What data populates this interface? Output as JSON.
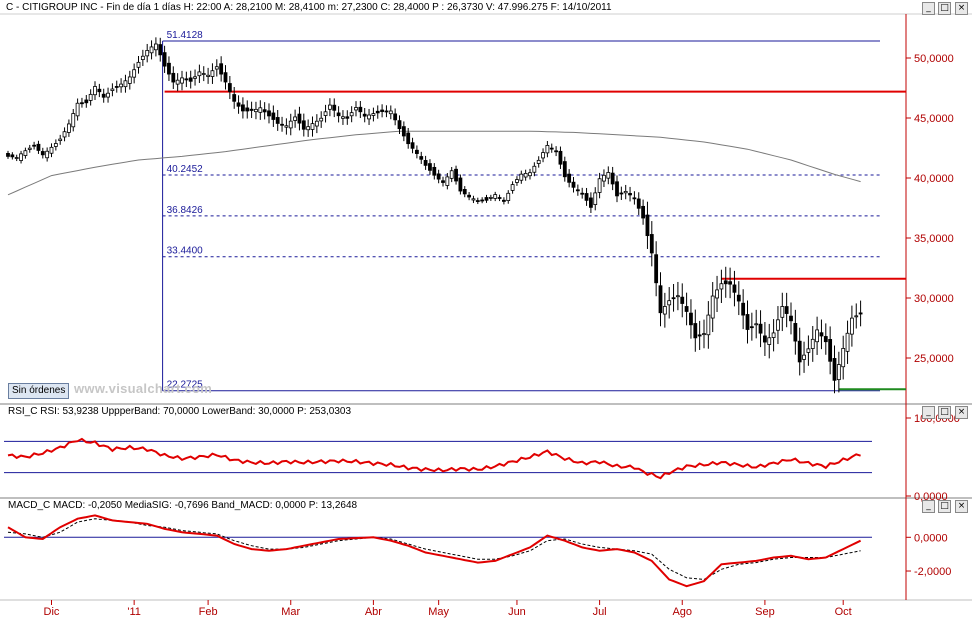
{
  "header": {
    "main": "C - CITIGROUP INC - Fin de día 1 días H: 22:00  A: 28,2100  M: 28,4100  m: 27,2300  C: 28,4000  P : 26,3730  V: 47.996.275  F: 14/10/2011",
    "rsi": "RSI_C  RSI: 53,9238  UppperBand: 70,0000  LowerBand: 30,0000  P: 253,0303",
    "macd": "MACD_C  MACD: -0,2050  MediaSIG: -0,7696  Band_MACD: 0,0000  P: 13,2648"
  },
  "controls": {
    "orders_button": "Sin órdenes",
    "watermark": "www.visualchart.com",
    "minimize": "_",
    "maximize": "□",
    "close": "×"
  },
  "colors": {
    "candle": "#000000",
    "resistance": "#e00000",
    "support": "#1f8a1f",
    "fibonacci": "#1a1a99",
    "moving_average": "#7a7a7a",
    "indicator": "#e00000",
    "axis_text": "#b00000"
  },
  "x_axis": {
    "months": [
      "Dic",
      "'11",
      "Feb",
      "Mar",
      "Abr",
      "May",
      "Jun",
      "Jul",
      "Ago",
      "Sep",
      "Oct"
    ]
  },
  "price_axis": {
    "ticks": [
      "50,0000",
      "45,0000",
      "40,0000",
      "35,0000",
      "30,0000",
      "25,0000"
    ]
  },
  "rsi_axis": {
    "ticks": [
      "100,0000",
      "0,0000"
    ]
  },
  "macd_axis": {
    "ticks": [
      "0,0000",
      "-2,0000"
    ]
  },
  "chart_data": {
    "type": "candlestick",
    "title": "C - CITIGROUP INC",
    "price_range": [
      21.5,
      53.5
    ],
    "fibonacci_levels": [
      {
        "label": "51.4128",
        "value": 51.4128
      },
      {
        "label": "40.2452",
        "value": 40.2452
      },
      {
        "label": "36.8426",
        "value": 36.8426
      },
      {
        "label": "33.4400",
        "value": 33.44
      },
      {
        "label": "22.2725",
        "value": 22.2725
      }
    ],
    "resistance_levels": [
      47.2,
      31.6
    ],
    "support_level": 22.4,
    "last_close": 28.4,
    "price_path": [
      [
        0,
        41.8
      ],
      [
        2,
        41.5
      ],
      [
        4,
        42.0
      ],
      [
        6,
        42.5
      ],
      [
        8,
        42.0
      ],
      [
        10,
        42.8
      ],
      [
        12,
        43.5
      ],
      [
        14,
        44.6
      ],
      [
        16,
        46.1
      ],
      [
        18,
        46.0
      ],
      [
        20,
        47.4
      ],
      [
        22,
        46.7
      ],
      [
        24,
        47.6
      ],
      [
        26,
        48.1
      ],
      [
        28,
        48.6
      ],
      [
        30,
        49.6
      ],
      [
        32,
        50.4
      ],
      [
        34,
        50.9
      ],
      [
        36,
        49.2
      ],
      [
        38,
        48.1
      ],
      [
        40,
        48.6
      ],
      [
        42,
        48.3
      ],
      [
        44,
        48.9
      ],
      [
        46,
        48.4
      ],
      [
        48,
        49.0
      ],
      [
        50,
        47.8
      ],
      [
        52,
        46.4
      ],
      [
        54,
        45.8
      ],
      [
        56,
        45.9
      ],
      [
        58,
        46.0
      ],
      [
        60,
        45.1
      ],
      [
        62,
        44.3
      ],
      [
        64,
        44.1
      ],
      [
        66,
        45.0
      ],
      [
        68,
        44.2
      ],
      [
        70,
        44.8
      ],
      [
        72,
        45.2
      ],
      [
        74,
        46.1
      ],
      [
        76,
        45.0
      ],
      [
        78,
        44.7
      ],
      [
        80,
        45.7
      ],
      [
        82,
        45.2
      ],
      [
        84,
        45.6
      ],
      [
        86,
        45.8
      ],
      [
        88,
        45.7
      ],
      [
        90,
        44.0
      ],
      [
        92,
        42.6
      ],
      [
        94,
        41.8
      ],
      [
        96,
        41.0
      ],
      [
        98,
        40.4
      ],
      [
        100,
        39.9
      ],
      [
        102,
        40.8
      ],
      [
        104,
        38.9
      ],
      [
        106,
        38.2
      ],
      [
        108,
        37.8
      ],
      [
        110,
        38.0
      ],
      [
        112,
        38.7
      ],
      [
        114,
        38.3
      ],
      [
        116,
        39.7
      ],
      [
        118,
        40.4
      ],
      [
        120,
        40.3
      ],
      [
        122,
        41.2
      ],
      [
        124,
        42.5
      ],
      [
        126,
        42.2
      ],
      [
        128,
        40.3
      ],
      [
        130,
        39.5
      ],
      [
        132,
        38.9
      ],
      [
        134,
        37.5
      ],
      [
        136,
        39.7
      ],
      [
        138,
        40.2
      ],
      [
        140,
        38.4
      ],
      [
        142,
        39.0
      ],
      [
        144,
        38.6
      ],
      [
        146,
        36.9
      ],
      [
        148,
        33.8
      ],
      [
        150,
        28.6
      ],
      [
        152,
        29.5
      ],
      [
        154,
        30.0
      ],
      [
        156,
        28.9
      ],
      [
        158,
        26.9
      ],
      [
        160,
        27.3
      ],
      [
        162,
        30.3
      ],
      [
        164,
        31.1
      ],
      [
        166,
        30.9
      ],
      [
        168,
        29.5
      ],
      [
        170,
        27.3
      ],
      [
        172,
        28.0
      ],
      [
        174,
        26.6
      ],
      [
        176,
        27.3
      ],
      [
        178,
        29.3
      ],
      [
        180,
        27.9
      ],
      [
        182,
        24.4
      ],
      [
        184,
        25.6
      ],
      [
        186,
        27.4
      ],
      [
        188,
        26.6
      ],
      [
        190,
        23.4
      ],
      [
        192,
        25.9
      ],
      [
        194,
        28.2
      ],
      [
        196,
        28.4
      ]
    ],
    "moving_average": [
      [
        0,
        38.6
      ],
      [
        10,
        40.2
      ],
      [
        20,
        40.9
      ],
      [
        30,
        41.5
      ],
      [
        40,
        41.8
      ],
      [
        50,
        42.2
      ],
      [
        60,
        42.7
      ],
      [
        70,
        43.2
      ],
      [
        80,
        43.6
      ],
      [
        90,
        43.9
      ],
      [
        100,
        43.9
      ],
      [
        110,
        43.9
      ],
      [
        120,
        43.9
      ],
      [
        130,
        43.8
      ],
      [
        140,
        43.6
      ],
      [
        150,
        43.4
      ],
      [
        160,
        43.0
      ],
      [
        170,
        42.4
      ],
      [
        180,
        41.5
      ],
      [
        190,
        40.3
      ],
      [
        196,
        39.7
      ]
    ],
    "rsi": {
      "upper_band": 70,
      "lower_band": 30,
      "range": [
        0,
        100
      ],
      "values": [
        [
          0,
          52
        ],
        [
          4,
          50
        ],
        [
          8,
          55
        ],
        [
          12,
          62
        ],
        [
          16,
          72
        ],
        [
          20,
          68
        ],
        [
          24,
          60
        ],
        [
          28,
          62
        ],
        [
          32,
          60
        ],
        [
          36,
          52
        ],
        [
          40,
          48
        ],
        [
          44,
          50
        ],
        [
          48,
          53
        ],
        [
          52,
          46
        ],
        [
          56,
          43
        ],
        [
          60,
          42
        ],
        [
          64,
          44
        ],
        [
          68,
          43
        ],
        [
          72,
          44
        ],
        [
          76,
          45
        ],
        [
          80,
          44
        ],
        [
          84,
          42
        ],
        [
          88,
          40
        ],
        [
          92,
          36
        ],
        [
          96,
          34
        ],
        [
          100,
          33
        ],
        [
          104,
          35
        ],
        [
          108,
          34
        ],
        [
          112,
          38
        ],
        [
          116,
          44
        ],
        [
          120,
          50
        ],
        [
          124,
          57
        ],
        [
          128,
          48
        ],
        [
          132,
          42
        ],
        [
          136,
          44
        ],
        [
          140,
          38
        ],
        [
          144,
          37
        ],
        [
          146,
          31
        ],
        [
          150,
          24
        ],
        [
          152,
          30
        ],
        [
          156,
          38
        ],
        [
          160,
          40
        ],
        [
          164,
          43
        ],
        [
          168,
          40
        ],
        [
          172,
          37
        ],
        [
          176,
          42
        ],
        [
          180,
          47
        ],
        [
          184,
          42
        ],
        [
          188,
          38
        ],
        [
          192,
          46
        ],
        [
          196,
          53.9
        ]
      ]
    },
    "macd": {
      "range": [
        -3.6,
        1.5
      ],
      "macd": [
        [
          0,
          0.6
        ],
        [
          4,
          0.0
        ],
        [
          8,
          -0.1
        ],
        [
          12,
          0.6
        ],
        [
          16,
          1.1
        ],
        [
          20,
          1.3
        ],
        [
          24,
          1.0
        ],
        [
          28,
          0.9
        ],
        [
          32,
          0.8
        ],
        [
          36,
          0.5
        ],
        [
          40,
          0.3
        ],
        [
          44,
          0.2
        ],
        [
          48,
          0.1
        ],
        [
          52,
          -0.4
        ],
        [
          56,
          -0.7
        ],
        [
          60,
          -0.8
        ],
        [
          64,
          -0.7
        ],
        [
          68,
          -0.5
        ],
        [
          72,
          -0.3
        ],
        [
          76,
          -0.1
        ],
        [
          80,
          -0.05
        ],
        [
          84,
          0.0
        ],
        [
          88,
          -0.2
        ],
        [
          92,
          -0.5
        ],
        [
          96,
          -0.9
        ],
        [
          100,
          -1.1
        ],
        [
          104,
          -1.3
        ],
        [
          108,
          -1.5
        ],
        [
          112,
          -1.4
        ],
        [
          116,
          -1.0
        ],
        [
          120,
          -0.6
        ],
        [
          124,
          0.1
        ],
        [
          128,
          -0.2
        ],
        [
          132,
          -0.6
        ],
        [
          136,
          -0.8
        ],
        [
          140,
          -0.7
        ],
        [
          144,
          -0.9
        ],
        [
          148,
          -1.4
        ],
        [
          152,
          -2.5
        ],
        [
          156,
          -2.9
        ],
        [
          160,
          -2.6
        ],
        [
          164,
          -1.6
        ],
        [
          168,
          -1.5
        ],
        [
          172,
          -1.4
        ],
        [
          176,
          -1.2
        ],
        [
          180,
          -1.1
        ],
        [
          184,
          -1.3
        ],
        [
          188,
          -1.2
        ],
        [
          192,
          -0.7
        ],
        [
          196,
          -0.2
        ]
      ],
      "signal": [
        [
          0,
          0.3
        ],
        [
          4,
          0.2
        ],
        [
          8,
          0.0
        ],
        [
          12,
          0.3
        ],
        [
          16,
          0.9
        ],
        [
          20,
          1.1
        ],
        [
          24,
          1.0
        ],
        [
          28,
          0.9
        ],
        [
          32,
          0.7
        ],
        [
          36,
          0.6
        ],
        [
          40,
          0.4
        ],
        [
          44,
          0.3
        ],
        [
          48,
          0.2
        ],
        [
          52,
          -0.2
        ],
        [
          56,
          -0.5
        ],
        [
          60,
          -0.7
        ],
        [
          64,
          -0.7
        ],
        [
          68,
          -0.6
        ],
        [
          72,
          -0.4
        ],
        [
          76,
          -0.2
        ],
        [
          80,
          -0.1
        ],
        [
          84,
          0.0
        ],
        [
          88,
          -0.1
        ],
        [
          92,
          -0.4
        ],
        [
          96,
          -0.7
        ],
        [
          100,
          -0.9
        ],
        [
          104,
          -1.1
        ],
        [
          108,
          -1.3
        ],
        [
          112,
          -1.3
        ],
        [
          116,
          -1.1
        ],
        [
          120,
          -0.8
        ],
        [
          124,
          -0.2
        ],
        [
          128,
          -0.1
        ],
        [
          132,
          -0.4
        ],
        [
          136,
          -0.6
        ],
        [
          140,
          -0.7
        ],
        [
          144,
          -0.8
        ],
        [
          148,
          -1.0
        ],
        [
          152,
          -1.9
        ],
        [
          156,
          -2.4
        ],
        [
          160,
          -2.5
        ],
        [
          164,
          -1.9
        ],
        [
          168,
          -1.6
        ],
        [
          172,
          -1.5
        ],
        [
          176,
          -1.3
        ],
        [
          180,
          -1.2
        ],
        [
          184,
          -1.2
        ],
        [
          188,
          -1.2
        ],
        [
          192,
          -1.0
        ],
        [
          196,
          -0.8
        ]
      ]
    }
  }
}
